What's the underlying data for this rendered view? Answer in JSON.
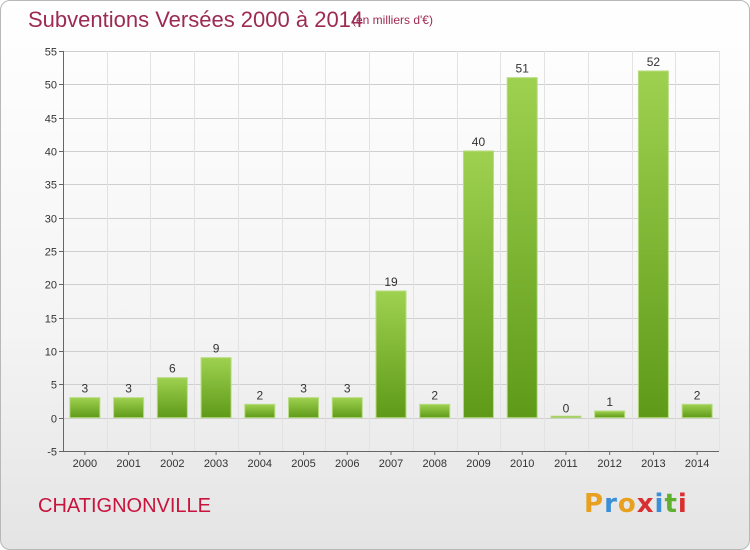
{
  "chart_data": {
    "type": "bar",
    "title": "Subventions Versées 2000 à 2014",
    "subtitle": "(en milliers d'€)",
    "categories": [
      "2000",
      "2001",
      "2002",
      "2003",
      "2004",
      "2005",
      "2006",
      "2007",
      "2008",
      "2009",
      "2010",
      "2011",
      "2012",
      "2013",
      "2014"
    ],
    "values": [
      3,
      3,
      6,
      9,
      2,
      3,
      3,
      19,
      2,
      40,
      51,
      0,
      1,
      52,
      2
    ],
    "ylim": [
      -5,
      55
    ],
    "yticks": [
      -5,
      0,
      5,
      10,
      15,
      20,
      25,
      30,
      35,
      40,
      45,
      50,
      55
    ],
    "grid": true,
    "legend": "none",
    "bar_color": "#7db42c"
  },
  "footer": {
    "commune": "CHATIGNONVILLE",
    "logo_letters": [
      "P",
      "r",
      "o",
      "x",
      "i",
      "t",
      "i"
    ],
    "logo_colors": [
      "#e8a020",
      "#3a8fd8",
      "#e8a020",
      "#d83030",
      "#3a8fd8",
      "#60b030",
      "#d83030"
    ]
  }
}
